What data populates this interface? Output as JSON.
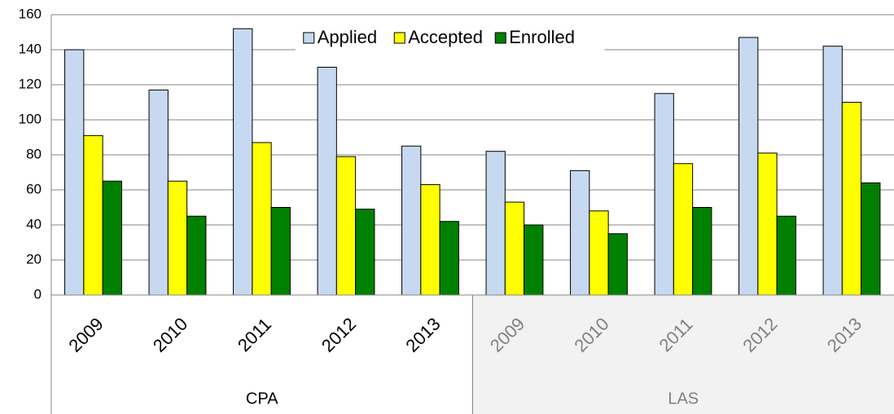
{
  "chart_data": {
    "type": "bar",
    "groups": [
      {
        "label": "CPA",
        "color": "#000000",
        "background": "#ffffff",
        "categories": [
          "2009",
          "2010",
          "2011",
          "2012",
          "2013"
        ]
      },
      {
        "label": "LAS",
        "color": "#808080",
        "background": "#f2f2f2",
        "categories": [
          "2009",
          "2010",
          "2011",
          "2012",
          "2013"
        ]
      }
    ],
    "series": [
      {
        "name": "Applied",
        "color": "#c6d9f1",
        "values": [
          140,
          117,
          152,
          130,
          85,
          82,
          71,
          115,
          147,
          142
        ]
      },
      {
        "name": "Accepted",
        "color": "#ffff00",
        "values": [
          91,
          65,
          87,
          79,
          63,
          53,
          48,
          75,
          81,
          110
        ]
      },
      {
        "name": "Enrolled",
        "color": "#008000",
        "values": [
          65,
          45,
          50,
          49,
          42,
          40,
          35,
          50,
          45,
          64
        ]
      }
    ],
    "ylim": [
      0,
      160
    ],
    "yticks": [
      0,
      20,
      40,
      60,
      80,
      100,
      120,
      140,
      160
    ],
    "grid": true,
    "legend": "top"
  }
}
